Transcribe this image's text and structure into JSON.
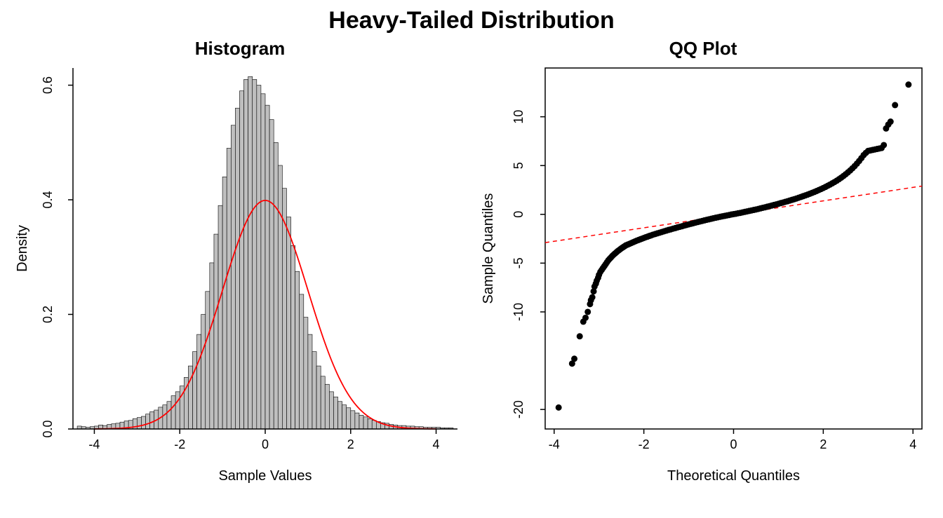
{
  "main_title": "Heavy-Tailed Distribution",
  "histogram": {
    "title": "Histogram",
    "xlabel": "Sample Values",
    "ylabel": "Density",
    "xlim": [
      -4.5,
      4.5
    ],
    "ylim": [
      0,
      0.63
    ],
    "xtick_step": 2,
    "xticks": [
      -4,
      -2,
      0,
      2,
      4
    ],
    "yticks": [
      0.0,
      0.2,
      0.4,
      0.6
    ],
    "bar_color": "#bfbfbf",
    "bar_border": "#000000",
    "normal_curve_color": "#ff0000",
    "normal_curve_width": 1.8,
    "axis_color": "#000000",
    "tick_fontsize": 18,
    "label_fontsize": 20,
    "title_fontsize": 26,
    "bin_width": 0.1,
    "bins_start": -4.4,
    "bins_end": 4.4,
    "densities": [
      0.005,
      0.004,
      0.003,
      0.004,
      0.005,
      0.007,
      0.006,
      0.008,
      0.009,
      0.01,
      0.012,
      0.014,
      0.015,
      0.018,
      0.02,
      0.022,
      0.026,
      0.03,
      0.033,
      0.038,
      0.042,
      0.048,
      0.058,
      0.065,
      0.075,
      0.09,
      0.11,
      0.135,
      0.165,
      0.2,
      0.24,
      0.29,
      0.34,
      0.39,
      0.44,
      0.49,
      0.53,
      0.56,
      0.59,
      0.61,
      0.615,
      0.61,
      0.6,
      0.585,
      0.565,
      0.54,
      0.5,
      0.46,
      0.42,
      0.37,
      0.32,
      0.275,
      0.235,
      0.195,
      0.165,
      0.135,
      0.11,
      0.092,
      0.078,
      0.065,
      0.056,
      0.048,
      0.042,
      0.037,
      0.032,
      0.028,
      0.024,
      0.021,
      0.018,
      0.015,
      0.013,
      0.011,
      0.01,
      0.008,
      0.007,
      0.006,
      0.006,
      0.005,
      0.005,
      0.004,
      0.004,
      0.003,
      0.003,
      0.003,
      0.003,
      0.002,
      0.002,
      0.002
    ],
    "normal_mu": 0,
    "normal_sigma": 1
  },
  "qqplot": {
    "title": "QQ Plot",
    "xlabel": "Theoretical Quantiles",
    "ylabel": "Sample Quantiles",
    "xlim": [
      -4.2,
      4.2
    ],
    "ylim": [
      -22,
      15
    ],
    "xticks": [
      -4,
      -2,
      0,
      2,
      4
    ],
    "yticks": [
      -20,
      -10,
      -5,
      0,
      5,
      10
    ],
    "point_color": "#000000",
    "point_radius": 4.5,
    "ref_line_color": "#ff0000",
    "ref_line_dash": "6,5",
    "ref_line_width": 1.5,
    "ref_line_slope": 0.69,
    "ref_line_intercept": 0,
    "axis_color": "#000000",
    "border_color": "#000000",
    "tick_fontsize": 18,
    "label_fontsize": 20,
    "title_fontsize": 26,
    "points": [
      [
        -3.9,
        -19.8
      ],
      [
        -3.6,
        -15.3
      ],
      [
        -3.55,
        -14.8
      ],
      [
        -3.43,
        -12.5
      ],
      [
        -3.35,
        -11.0
      ],
      [
        -3.3,
        -10.6
      ],
      [
        -3.25,
        -10.0
      ],
      [
        -3.2,
        -9.2
      ],
      [
        -3.18,
        -8.8
      ],
      [
        -3.15,
        -8.5
      ],
      [
        -3.12,
        -7.9
      ],
      [
        -3.1,
        -7.4
      ],
      [
        -3.07,
        -7.1
      ],
      [
        -3.05,
        -6.8
      ],
      [
        -3.02,
        -6.5
      ],
      [
        -3.0,
        -6.2
      ],
      [
        -2.97,
        -5.9
      ],
      [
        -2.94,
        -5.7
      ],
      [
        -2.91,
        -5.5
      ],
      [
        -2.88,
        -5.3
      ],
      [
        -2.85,
        -5.1
      ],
      [
        -2.82,
        -4.9
      ],
      [
        -2.79,
        -4.7
      ],
      [
        -2.76,
        -4.55
      ],
      [
        -2.73,
        -4.4
      ],
      [
        -2.7,
        -4.25
      ],
      [
        -2.67,
        -4.12
      ],
      [
        -2.64,
        -4.0
      ],
      [
        -2.61,
        -3.88
      ],
      [
        -2.58,
        -3.76
      ],
      [
        -2.55,
        -3.66
      ],
      [
        -2.52,
        -3.55
      ],
      [
        -2.49,
        -3.45
      ],
      [
        -2.46,
        -3.36
      ],
      [
        -2.43,
        -3.27
      ],
      [
        -2.4,
        -3.18
      ],
      [
        -2.36,
        -3.1
      ],
      [
        -2.32,
        -3.02
      ],
      [
        -2.28,
        -2.94
      ],
      [
        -2.24,
        -2.86
      ],
      [
        -2.2,
        -2.78
      ],
      [
        -2.16,
        -2.7
      ],
      [
        -2.12,
        -2.63
      ],
      [
        -2.08,
        -2.56
      ],
      [
        -2.04,
        -2.49
      ],
      [
        -2.0,
        -2.42
      ],
      [
        -1.96,
        -2.35
      ],
      [
        -1.92,
        -2.29
      ],
      [
        -1.88,
        -2.22
      ],
      [
        -1.84,
        -2.16
      ],
      [
        -1.8,
        -2.09
      ],
      [
        -1.75,
        -2.02
      ],
      [
        -1.7,
        -1.95
      ],
      [
        -1.65,
        -1.88
      ],
      [
        -1.6,
        -1.81
      ],
      [
        -1.55,
        -1.74
      ],
      [
        -1.5,
        -1.67
      ],
      [
        -1.45,
        -1.6
      ],
      [
        -1.4,
        -1.54
      ],
      [
        -1.35,
        -1.47
      ],
      [
        -1.3,
        -1.41
      ],
      [
        -1.25,
        -1.34
      ],
      [
        -1.2,
        -1.28
      ],
      [
        -1.15,
        -1.22
      ],
      [
        -1.1,
        -1.15
      ],
      [
        -1.05,
        -1.09
      ],
      [
        -1.0,
        -1.03
      ],
      [
        -0.95,
        -0.97
      ],
      [
        -0.9,
        -0.91
      ],
      [
        -0.85,
        -0.85
      ],
      [
        -0.8,
        -0.79
      ],
      [
        -0.75,
        -0.73
      ],
      [
        -0.7,
        -0.68
      ],
      [
        -0.65,
        -0.62
      ],
      [
        -0.6,
        -0.56
      ],
      [
        -0.55,
        -0.51
      ],
      [
        -0.5,
        -0.46
      ],
      [
        -0.45,
        -0.4
      ],
      [
        -0.4,
        -0.35
      ],
      [
        -0.35,
        -0.3
      ],
      [
        -0.3,
        -0.25
      ],
      [
        -0.25,
        -0.2
      ],
      [
        -0.2,
        -0.16
      ],
      [
        -0.15,
        -0.11
      ],
      [
        -0.1,
        -0.07
      ],
      [
        -0.05,
        -0.02
      ],
      [
        0.0,
        0.02
      ],
      [
        0.05,
        0.06
      ],
      [
        0.1,
        0.11
      ],
      [
        0.15,
        0.15
      ],
      [
        0.2,
        0.2
      ],
      [
        0.25,
        0.25
      ],
      [
        0.3,
        0.3
      ],
      [
        0.35,
        0.35
      ],
      [
        0.4,
        0.4
      ],
      [
        0.45,
        0.45
      ],
      [
        0.5,
        0.5
      ],
      [
        0.55,
        0.55
      ],
      [
        0.6,
        0.61
      ],
      [
        0.65,
        0.67
      ],
      [
        0.7,
        0.72
      ],
      [
        0.75,
        0.78
      ],
      [
        0.8,
        0.84
      ],
      [
        0.85,
        0.9
      ],
      [
        0.9,
        0.96
      ],
      [
        0.95,
        1.02
      ],
      [
        1.0,
        1.08
      ],
      [
        1.05,
        1.15
      ],
      [
        1.1,
        1.21
      ],
      [
        1.15,
        1.28
      ],
      [
        1.2,
        1.34
      ],
      [
        1.25,
        1.41
      ],
      [
        1.3,
        1.48
      ],
      [
        1.35,
        1.55
      ],
      [
        1.4,
        1.62
      ],
      [
        1.45,
        1.7
      ],
      [
        1.5,
        1.78
      ],
      [
        1.55,
        1.86
      ],
      [
        1.6,
        1.94
      ],
      [
        1.65,
        2.02
      ],
      [
        1.7,
        2.11
      ],
      [
        1.75,
        2.2
      ],
      [
        1.8,
        2.29
      ],
      [
        1.85,
        2.39
      ],
      [
        1.9,
        2.49
      ],
      [
        1.95,
        2.59
      ],
      [
        2.0,
        2.7
      ],
      [
        2.05,
        2.81
      ],
      [
        2.1,
        2.93
      ],
      [
        2.15,
        3.05
      ],
      [
        2.2,
        3.18
      ],
      [
        2.25,
        3.31
      ],
      [
        2.3,
        3.45
      ],
      [
        2.35,
        3.6
      ],
      [
        2.4,
        3.76
      ],
      [
        2.45,
        3.93
      ],
      [
        2.5,
        4.11
      ],
      [
        2.55,
        4.3
      ],
      [
        2.6,
        4.5
      ],
      [
        2.65,
        4.72
      ],
      [
        2.7,
        4.95
      ],
      [
        2.75,
        5.2
      ],
      [
        2.8,
        5.47
      ],
      [
        2.85,
        5.76
      ],
      [
        2.9,
        6.07
      ],
      [
        2.95,
        6.3
      ],
      [
        3.0,
        6.5
      ],
      [
        3.05,
        6.55
      ],
      [
        3.1,
        6.6
      ],
      [
        3.15,
        6.65
      ],
      [
        3.2,
        6.7
      ],
      [
        3.25,
        6.75
      ],
      [
        3.3,
        6.8
      ],
      [
        3.35,
        7.1
      ],
      [
        3.4,
        8.8
      ],
      [
        3.45,
        9.2
      ],
      [
        3.5,
        9.5
      ],
      [
        3.6,
        11.2
      ],
      [
        3.9,
        13.3
      ]
    ]
  }
}
